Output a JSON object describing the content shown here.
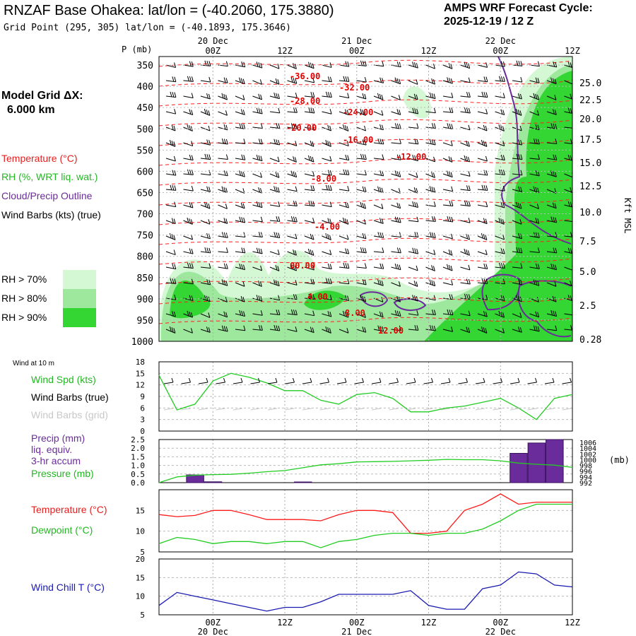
{
  "header": {
    "title": "RNZAF Base Ohakea:  lat/lon = (-40.2060, 175.3880)",
    "subtitle": "Grid Point (295, 305) lat/lon = (-40.1893, 175.3646)",
    "cycle_line1": "AMPS WRF Forecast Cycle:",
    "cycle_line2": "2025-12-19 / 12  Z"
  },
  "legend": {
    "model_grid_1": "Model Grid ΔX:",
    "model_grid_2": "6.000 km",
    "temperature": "Temperature (°C)",
    "rh": "RH (%, WRT liq. wat.)",
    "cloud": "Cloud/Precip Outline",
    "wind": "Wind Barbs (kts) (true)",
    "rh70": "RH > 70%",
    "rh80": "RH > 80%",
    "rh90": "RH > 90%",
    "rh_colors": [
      "#d4f7d4",
      "#9ee89e",
      "#34d634"
    ]
  },
  "time_axis": {
    "day_labels": [
      "20 Dec",
      "21 Dec",
      "22 Dec"
    ],
    "hour_labels": [
      "00Z",
      "12Z",
      "00Z",
      "12Z",
      "00Z",
      "12Z"
    ],
    "p_label": "P (mb)"
  },
  "chart_data": [
    {
      "type": "line",
      "name": "cross-section",
      "ylabel_left": "P (mb)",
      "ylabel_right": "Kft MSL",
      "pressure_ticks": [
        "350",
        "400",
        "450",
        "500",
        "550",
        "600",
        "650",
        "700",
        "750",
        "800",
        "850",
        "900",
        "950",
        "1000"
      ],
      "height_ticks": [
        "25.0",
        "22.5",
        "20.0",
        "17.5",
        "15.0",
        "12.5",
        "10.0",
        "7.5",
        "5.0",
        "2.5",
        "0.28"
      ],
      "temp_labels": [
        "-36.00",
        "-32.00",
        "-28.00",
        "-24.00",
        "-20.00",
        "-16.00",
        "-12.00",
        "-8.00",
        "-4.00",
        "00.00",
        "4.00",
        "8.00",
        "12.00"
      ],
      "colors": {
        "temp": "#ff2020",
        "cloud": "#6a2c9a",
        "grid": "#999999"
      }
    },
    {
      "type": "line",
      "name": "wind at 10 m",
      "label": "Wind at 10 m",
      "legend": [
        "Wind Spd (kts)",
        "Wind Barbs (true)",
        "Wind Barbs (grid)"
      ],
      "yticks": [
        "0",
        "3",
        "6",
        "9",
        "12",
        "15",
        "18"
      ],
      "ylim": [
        0,
        18
      ],
      "x": [
        -9,
        -6,
        -3,
        0,
        3,
        6,
        9,
        12,
        15,
        18,
        21,
        24,
        27,
        30,
        33,
        36,
        39,
        42,
        45,
        48,
        51,
        54,
        57,
        60
      ],
      "wind_speed": [
        14.5,
        5.5,
        7,
        13,
        15,
        14,
        12.5,
        10.5,
        10.5,
        8,
        7,
        9.5,
        10,
        8.5,
        5,
        5,
        6,
        6.5,
        7.5,
        8.5,
        6,
        3,
        8.5,
        9.5
      ]
    },
    {
      "type": "bar",
      "name": "precip and pressure",
      "legend": [
        "Precip (mm)",
        "liq. equiv.",
        "3-hr accum",
        "Pressure (mb)"
      ],
      "yticks_left": [
        "0.0",
        "0.5",
        "1.0",
        "1.5",
        "2.0",
        "2.5"
      ],
      "yticks_right": [
        "992",
        "994",
        "996",
        "998",
        "1000",
        "1002",
        "1004",
        "1006"
      ],
      "right_unit": "(mb)",
      "ylim_left": [
        0,
        2.5
      ],
      "ylim_right": [
        992,
        1007
      ],
      "precip_x": [
        -3,
        0,
        15,
        51,
        54,
        57
      ],
      "precip": [
        0.45,
        0.05,
        0.04,
        1.7,
        2.3,
        2.5
      ],
      "pressure_x": [
        -9,
        -6,
        -3,
        0,
        3,
        6,
        9,
        12,
        15,
        18,
        21,
        24,
        27,
        30,
        33,
        36,
        39,
        42,
        45,
        48,
        51,
        54,
        57,
        60
      ],
      "pressure": [
        992,
        994,
        994.6,
        994.8,
        994.9,
        995.3,
        995.8,
        996.2,
        997.2,
        998.2,
        998.6,
        999.2,
        999.3,
        999.4,
        999.6,
        999.8,
        1000.1,
        1000,
        1000,
        999.6,
        998.8,
        998.4,
        998.1,
        997.3
      ]
    },
    {
      "type": "line",
      "name": "temperature and dewpoint",
      "legend": [
        "Temperature (°C)",
        "Dewpoint (°C)"
      ],
      "yticks": [
        "5",
        "10",
        "15"
      ],
      "ylim": [
        5,
        20
      ],
      "x": [
        -9,
        -6,
        -3,
        0,
        3,
        6,
        9,
        12,
        15,
        18,
        21,
        24,
        27,
        30,
        33,
        36,
        39,
        42,
        45,
        48,
        51,
        54,
        57,
        60
      ],
      "temperature": [
        14,
        13.5,
        13.8,
        15,
        15,
        14,
        12.8,
        12.8,
        12.8,
        12.5,
        14,
        15,
        15,
        14.5,
        9.5,
        9.5,
        10,
        15,
        16.5,
        19,
        16.5,
        17,
        17,
        17
      ],
      "dewpoint": [
        7,
        8.5,
        8,
        7,
        7.5,
        7.5,
        7,
        7.5,
        7.5,
        6,
        7.5,
        8,
        9,
        9.5,
        9.5,
        9,
        9.5,
        9.5,
        10.5,
        12.5,
        15,
        16.5,
        16.5,
        16.5
      ],
      "colors": {
        "temperature": "#ff1a1a",
        "dewpoint": "#22cc22"
      }
    },
    {
      "type": "line",
      "name": "wind chill",
      "legend": [
        "Wind Chill T (°C)"
      ],
      "yticks": [
        "5",
        "10",
        "15",
        "20"
      ],
      "ylim": [
        5,
        20
      ],
      "x": [
        -9,
        -6,
        -3,
        0,
        3,
        6,
        9,
        12,
        15,
        18,
        21,
        24,
        27,
        30,
        33,
        36,
        39,
        42,
        45,
        48,
        51,
        54,
        57,
        60
      ],
      "wind_chill": [
        7.5,
        11,
        10,
        9,
        8,
        7,
        6,
        7,
        7,
        8.5,
        10.5,
        10.5,
        10.5,
        10.5,
        11.5,
        7.5,
        6.5,
        6.5,
        12,
        13,
        16.5,
        16,
        13,
        12.5
      ],
      "colors": {
        "wind_chill": "#1a1ab0"
      }
    }
  ]
}
